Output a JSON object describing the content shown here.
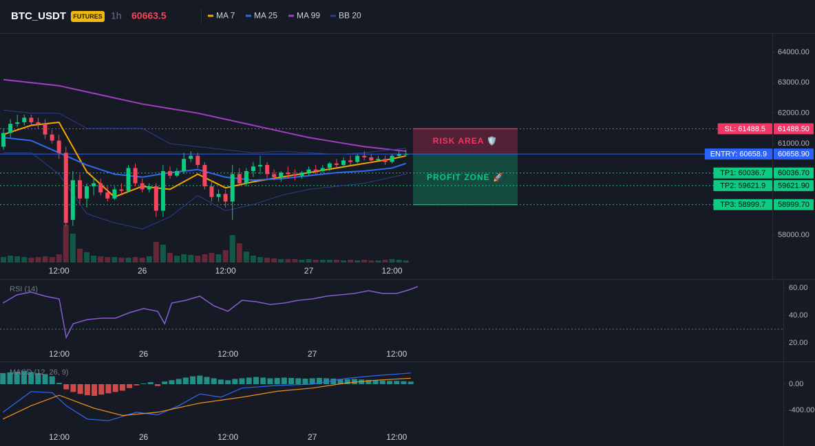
{
  "chart_data": [
    {
      "type": "candlestick",
      "title": "BTC_USDT",
      "badge": "FUTURES",
      "interval": "1h",
      "last_price": 60663.5,
      "up_color": "#0ecb81",
      "down_color": "#f6465d",
      "x": [
        4,
        5,
        6,
        7,
        8,
        9,
        10,
        11,
        12,
        13,
        14,
        15,
        16,
        17,
        18,
        19,
        20,
        21,
        22,
        23,
        24,
        25,
        26,
        27,
        28,
        29,
        30,
        31,
        32,
        33,
        34,
        35,
        36,
        37,
        38,
        39,
        40,
        41,
        42,
        43,
        44,
        45,
        46,
        47,
        48,
        49,
        50,
        51,
        52,
        53,
        54,
        55,
        56,
        57,
        58,
        59,
        60,
        61,
        62
      ],
      "open": [
        60900,
        61350,
        61650,
        61700,
        61850,
        61700,
        61650,
        61300,
        61100,
        60700,
        58500,
        59800,
        59200,
        59600,
        59700,
        59400,
        59200,
        59500,
        59450,
        60200,
        59700,
        59500,
        59600,
        58800,
        60100,
        59950,
        60100,
        60500,
        60600,
        60300,
        59600,
        59250,
        59350,
        59100,
        60000,
        59700,
        60100,
        60250,
        60300,
        60000,
        59900,
        60050,
        60000,
        59950,
        60050,
        60150,
        60100,
        60200,
        60350,
        60300,
        60450,
        60400,
        60600,
        60550,
        60450,
        60500,
        60400,
        60600,
        60650
      ],
      "high": [
        61500,
        61800,
        61950,
        61950,
        61950,
        61850,
        61800,
        61450,
        61300,
        60900,
        60100,
        60000,
        59700,
        59900,
        59850,
        59600,
        59600,
        59700,
        60300,
        60350,
        59850,
        59700,
        59700,
        60300,
        60250,
        60200,
        60700,
        60750,
        60700,
        60400,
        59800,
        59500,
        59500,
        60300,
        60200,
        60200,
        60400,
        60600,
        60400,
        60150,
        60100,
        60250,
        60150,
        60100,
        60250,
        60300,
        60300,
        60400,
        60500,
        60550,
        60600,
        60650,
        60750,
        60650,
        60600,
        60600,
        60650,
        60750,
        60800
      ],
      "low": [
        60800,
        61200,
        61550,
        61600,
        61600,
        61500,
        61150,
        61000,
        60500,
        58300,
        58300,
        59000,
        58900,
        59300,
        59300,
        59100,
        59150,
        59300,
        59400,
        59600,
        59400,
        59400,
        58600,
        58600,
        59850,
        59900,
        60000,
        60400,
        60200,
        59500,
        59100,
        59100,
        58900,
        58500,
        59600,
        59600,
        59900,
        60000,
        59850,
        59800,
        59750,
        59850,
        59800,
        59850,
        59950,
        60000,
        60050,
        60100,
        60200,
        60200,
        60300,
        60350,
        60450,
        60350,
        60400,
        60300,
        60350,
        60550,
        60600
      ],
      "close": [
        61350,
        61650,
        61700,
        61850,
        61700,
        61650,
        61300,
        61100,
        60700,
        58400,
        59800,
        59200,
        59600,
        59700,
        59400,
        59200,
        59500,
        59450,
        60200,
        59700,
        59500,
        59600,
        58800,
        60100,
        59950,
        60100,
        60500,
        60600,
        60300,
        59600,
        59250,
        59350,
        59100,
        60000,
        59700,
        60100,
        60250,
        60300,
        60000,
        59900,
        60050,
        60000,
        59950,
        60050,
        60150,
        60100,
        60200,
        60350,
        60300,
        60450,
        60400,
        60600,
        60550,
        60450,
        60500,
        60400,
        60600,
        60650,
        60663.5
      ],
      "volume": [
        8,
        10,
        9,
        8,
        7,
        8,
        9,
        8,
        12,
        55,
        42,
        20,
        15,
        10,
        9,
        8,
        8,
        7,
        7,
        8,
        7,
        9,
        30,
        26,
        14,
        10,
        12,
        11,
        10,
        12,
        14,
        12,
        18,
        40,
        28,
        16,
        10,
        8,
        7,
        6,
        5,
        5,
        5,
        4,
        5,
        4,
        4,
        4,
        4,
        3,
        4,
        3,
        4,
        3,
        3,
        4,
        5,
        4,
        3
      ],
      "series": [
        {
          "name": "MA 7",
          "color": "#f7a600",
          "x": [
            4,
            8,
            12,
            16,
            20,
            24,
            28,
            32,
            36,
            40,
            44,
            48,
            52,
            56,
            60,
            62
          ],
          "values": [
            61300,
            61600,
            61700,
            60080,
            59250,
            59600,
            59500,
            60000,
            59550,
            59750,
            59900,
            60050,
            60200,
            60350,
            60500,
            60600
          ]
        },
        {
          "name": "MA 25",
          "color": "#2f6bf0",
          "x": [
            4,
            8,
            12,
            16,
            20,
            24,
            28,
            32,
            36,
            40,
            44,
            48,
            52,
            56,
            60,
            62
          ],
          "values": [
            61200,
            61100,
            60700,
            60300,
            60000,
            59900,
            60050,
            60150,
            59900,
            59800,
            59850,
            59950,
            60050,
            60100,
            60200,
            60350
          ]
        },
        {
          "name": "MA 99",
          "color": "#a23ec0",
          "x": [
            4,
            8,
            12,
            16,
            20,
            24,
            28,
            32,
            36,
            40,
            44,
            48,
            52,
            56,
            60,
            62
          ],
          "values": [
            63100,
            63000,
            62900,
            62700,
            62500,
            62300,
            62150,
            62000,
            61800,
            61600,
            61400,
            61200,
            61050,
            60900,
            60800,
            60750
          ]
        },
        {
          "name": "BB 20",
          "color": "#2a3f8f",
          "x": [
            4,
            8,
            12,
            16,
            20,
            24,
            28,
            32,
            36,
            40,
            44,
            48,
            52,
            56,
            60,
            62
          ],
          "values": [
            62100,
            62000,
            62000,
            61500,
            61500,
            61500,
            61000,
            60900,
            60800,
            60700,
            60750,
            60700,
            60650,
            60700,
            60800,
            60850
          ],
          "lower": [
            60700,
            60700,
            60000,
            58700,
            58400,
            58200,
            58600,
            59300,
            58800,
            59000,
            59300,
            59500,
            59600,
            59700,
            59900,
            60000
          ]
        }
      ],
      "levels": {
        "labels": [
          "SL: 61488.5",
          "ENTRY: 60658.9",
          "TP1: 60036.7",
          "TP2: 59621.9",
          "TP3: 58999.7"
        ],
        "values": [
          61488.5,
          60658.9,
          60036.7,
          59621.9,
          58999.7
        ],
        "value_labels": [
          "61488.50",
          "60658.90",
          "60036.70",
          "59621.90",
          "58999.70"
        ],
        "colors": [
          "#f23665",
          "#2962ff",
          "#0ecb81",
          "#0ecb81",
          "#0ecb81"
        ]
      },
      "zones": [
        {
          "label": "RISK AREA 🛡️",
          "color": "#f23665"
        },
        {
          "label": "PROFIT ZONE 🚀",
          "color": "#0ecb81"
        }
      ],
      "xlim": [
        3.5,
        114.8
      ],
      "ylim": [
        57100,
        64630
      ],
      "xticks": [
        {
          "value": 12,
          "label": "12:00"
        },
        {
          "value": 24,
          "label": "26"
        },
        {
          "value": 36,
          "label": "12:00"
        },
        {
          "value": 48,
          "label": "27"
        },
        {
          "value": 60,
          "label": "12:00"
        }
      ],
      "yticks": [
        {
          "value": 58000,
          "label": "58000.00"
        },
        {
          "value": 59000,
          "label": "59000.00"
        },
        {
          "value": 60000,
          "label": "60000.00"
        },
        {
          "value": 61000,
          "label": "61000.00"
        },
        {
          "value": 62000,
          "label": "62000.00"
        },
        {
          "value": 63000,
          "label": "63000.00"
        },
        {
          "value": 64000,
          "label": "64000.00"
        }
      ]
    },
    {
      "type": "line",
      "title": "RSI (14)",
      "color": "#8a5cd6",
      "x": [
        4,
        6,
        8,
        10,
        12,
        13,
        14,
        16,
        18,
        20,
        22,
        24,
        26,
        27,
        28,
        30,
        32,
        34,
        36,
        38,
        40,
        42,
        44,
        46,
        48,
        50,
        52,
        54,
        56,
        58,
        60,
        62,
        63
      ],
      "values": [
        49,
        55,
        57,
        54,
        52,
        24,
        34,
        37,
        38,
        38,
        42,
        45,
        43,
        34,
        49,
        51,
        54,
        47,
        43,
        51,
        50,
        48,
        49,
        51,
        52,
        54,
        55,
        56,
        58,
        56,
        56,
        59,
        61
      ],
      "reference_line": 30,
      "xlim": [
        3.58,
        115
      ],
      "ylim": [
        15.5,
        65.5
      ],
      "xticks": [
        {
          "value": 12,
          "label": "12:00"
        },
        {
          "value": 24,
          "label": "26"
        },
        {
          "value": 36,
          "label": "12:00"
        },
        {
          "value": 48,
          "label": "27"
        },
        {
          "value": 60,
          "label": "12:00"
        }
      ],
      "yticks": [
        {
          "value": 20,
          "label": "20.00"
        },
        {
          "value": 40,
          "label": "40.00"
        },
        {
          "value": 60,
          "label": "60.00"
        }
      ]
    },
    {
      "type": "macd",
      "title": "MACD (12, 26, 9)",
      "up_color": "#26a69a",
      "down_color": "#ef5350",
      "x": [
        4,
        5,
        6,
        7,
        8,
        9,
        10,
        11,
        12,
        13,
        14,
        15,
        16,
        17,
        18,
        19,
        20,
        21,
        22,
        23,
        24,
        25,
        26,
        27,
        28,
        29,
        30,
        31,
        32,
        33,
        34,
        35,
        36,
        37,
        38,
        39,
        40,
        41,
        42,
        43,
        44,
        45,
        46,
        47,
        48,
        49,
        50,
        51,
        52,
        53,
        54,
        55,
        56,
        57,
        58,
        59,
        60,
        61,
        62
      ],
      "histogram": [
        170,
        180,
        190,
        200,
        185,
        170,
        150,
        120,
        20,
        -80,
        -120,
        -150,
        -170,
        -180,
        -160,
        -140,
        -120,
        -100,
        -60,
        -20,
        10,
        30,
        -30,
        40,
        60,
        80,
        100,
        120,
        130,
        110,
        90,
        70,
        60,
        80,
        90,
        100,
        110,
        100,
        90,
        95,
        100,
        95,
        90,
        85,
        90,
        95,
        90,
        85,
        80,
        75,
        80,
        70,
        65,
        60,
        55,
        50,
        50,
        45,
        40
      ],
      "macd": {
        "color": "#2f6bf0",
        "x": [
          4,
          8,
          11,
          13,
          16,
          19,
          23,
          26,
          29,
          32,
          35,
          38,
          43,
          48,
          53,
          57,
          62
        ],
        "values": [
          -430,
          -115,
          -130,
          -330,
          -535,
          -560,
          -430,
          -470,
          -330,
          -150,
          -200,
          -60,
          -20,
          0,
          90,
          130,
          170
        ]
      },
      "signal": {
        "color": "#f7931a",
        "x": [
          4,
          8,
          12,
          17,
          21,
          26,
          32,
          38,
          43,
          48,
          53,
          57,
          62
        ],
        "values": [
          -535,
          -330,
          -170,
          -370,
          -480,
          -430,
          -290,
          -200,
          -110,
          -60,
          20,
          60,
          90
        ]
      },
      "xlim": [
        3.58,
        115
      ],
      "ylim": [
        -726,
        326
      ],
      "xticks": [
        {
          "value": 12,
          "label": "12:00"
        },
        {
          "value": 24,
          "label": "26"
        },
        {
          "value": 36,
          "label": "12:00"
        },
        {
          "value": 48,
          "label": "27"
        },
        {
          "value": 60,
          "label": "12:00"
        }
      ],
      "yticks": [
        {
          "value": 0,
          "label": "0.00"
        },
        {
          "value": -400,
          "label": "-400.00"
        }
      ]
    }
  ]
}
